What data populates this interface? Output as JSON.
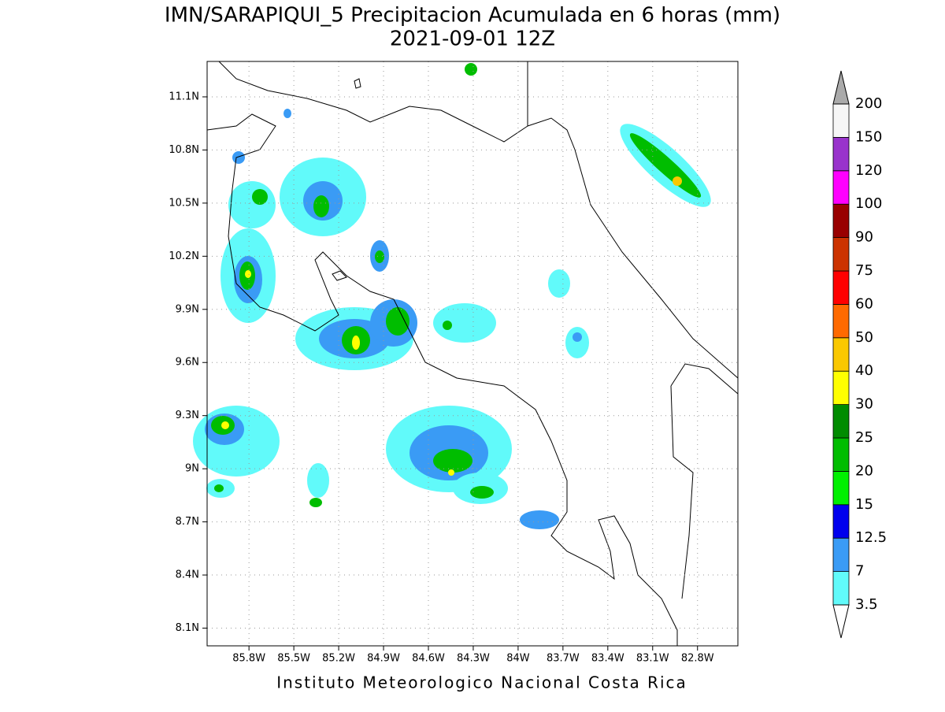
{
  "header": {
    "title": "IMN/SARAPIQUI_5 Precipitacion Acumulada en 6 horas (mm)",
    "subtitle": "2021-09-01 12Z"
  },
  "map": {
    "lonlim": [
      -86.08,
      -82.53
    ],
    "latlim": [
      8.0,
      11.3
    ],
    "lat_ticks": [
      {
        "value": 11.1,
        "label": "11.1N"
      },
      {
        "value": 10.8,
        "label": "10.8N"
      },
      {
        "value": 10.5,
        "label": "10.5N"
      },
      {
        "value": 10.2,
        "label": "10.2N"
      },
      {
        "value": 9.9,
        "label": "9.9N"
      },
      {
        "value": 9.6,
        "label": "9.6N"
      },
      {
        "value": 9.3,
        "label": "9.3N"
      },
      {
        "value": 9,
        "label": "9N"
      },
      {
        "value": 8.7,
        "label": "8.7N"
      },
      {
        "value": 8.4,
        "label": "8.4N"
      },
      {
        "value": 8.1,
        "label": "8.1N"
      }
    ],
    "lon_ticks": [
      {
        "value": -85.8,
        "label": "85.8W"
      },
      {
        "value": -85.5,
        "label": "85.5W"
      },
      {
        "value": -85.2,
        "label": "85.2W"
      },
      {
        "value": -84.9,
        "label": "84.9W"
      },
      {
        "value": -84.6,
        "label": "84.6W"
      },
      {
        "value": -84.3,
        "label": "84.3W"
      },
      {
        "value": -84,
        "label": "84W"
      },
      {
        "value": -83.7,
        "label": "83.7W"
      },
      {
        "value": -83.4,
        "label": "83.4W"
      },
      {
        "value": -83.1,
        "label": "83.1W"
      },
      {
        "value": -82.8,
        "label": "82.8W"
      }
    ],
    "grid": true
  },
  "colorbar": {
    "levels": [
      3.5,
      7,
      12.5,
      15,
      20,
      25,
      30,
      40,
      50,
      60,
      75,
      90,
      100,
      120,
      150,
      200
    ],
    "colors": [
      "#61fafa",
      "#3a9bf5",
      "#0000ee",
      "#00f000",
      "#00bd00",
      "#008c00",
      "#ffff00",
      "#fac800",
      "#ff6a00",
      "#ff0000",
      "#cc3300",
      "#990000",
      "#ff00ff",
      "#9933cc",
      "#f6f6f6"
    ],
    "over_color": "#aaaaaa",
    "under_color": "#ffffff"
  },
  "footer": "Instituto Meteorologico Nacional Costa Rica"
}
